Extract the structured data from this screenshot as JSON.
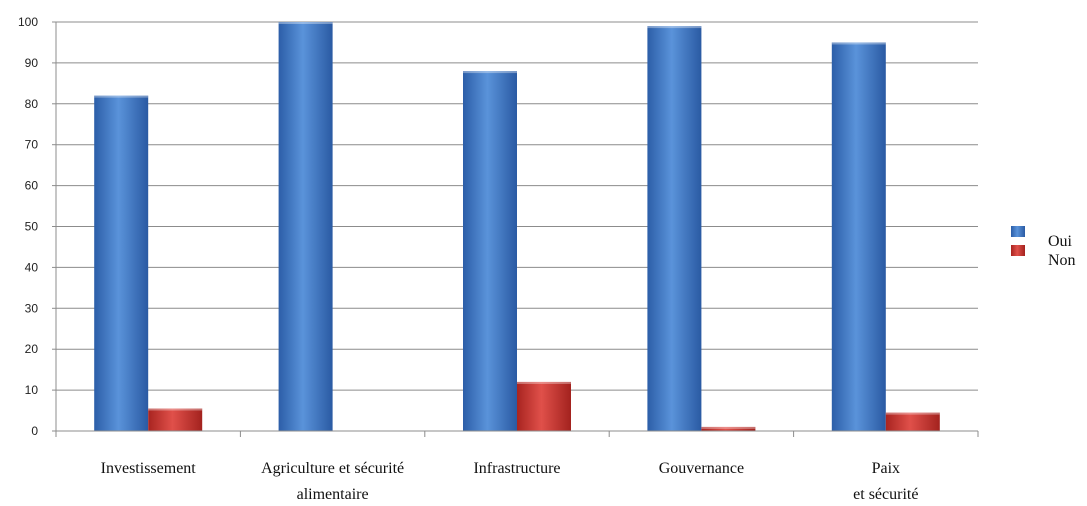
{
  "chart_data": {
    "type": "bar",
    "categories": [
      [
        "Investissement"
      ],
      [
        "Agriculture et sécurité",
        "alimentaire"
      ],
      [
        "Infrastructure"
      ],
      [
        "Gouvernance"
      ],
      [
        "Paix",
        "et sécurité"
      ]
    ],
    "series": [
      {
        "name": "Oui",
        "values": [
          82,
          100,
          88,
          99,
          95
        ],
        "color": "#3f78c6"
      },
      {
        "name": "Non",
        "values": [
          5.5,
          0,
          12,
          1,
          4.5
        ],
        "color": "#c9302c"
      }
    ],
    "ylim": [
      0,
      100
    ],
    "yticks": [
      0,
      10,
      20,
      30,
      40,
      50,
      60,
      70,
      80,
      90,
      100
    ],
    "grid": true,
    "legend": "right",
    "title": "",
    "xlabel": "",
    "ylabel": ""
  }
}
